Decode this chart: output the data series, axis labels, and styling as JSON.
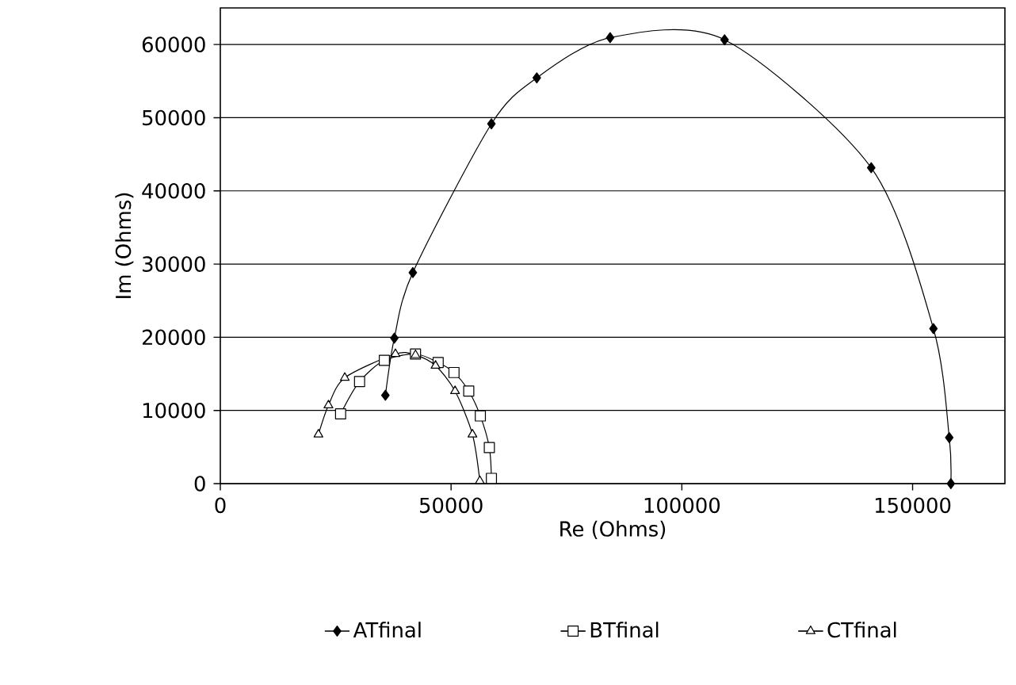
{
  "chart_data": {
    "type": "line",
    "xlabel": "Re (Ohms)",
    "ylabel": "Im (Ohms)",
    "xlim": [
      0,
      170000
    ],
    "xticks": [
      0,
      50000,
      100000,
      150000
    ],
    "ylim": [
      0,
      65000
    ],
    "yticks": [
      0,
      10000,
      20000,
      30000,
      40000,
      50000,
      60000
    ],
    "grid": "y",
    "legend": "bottom",
    "line_style": "solid",
    "series": [
      {
        "name": "ATfinal",
        "color": "#000000",
        "marker": "diamond",
        "x": [
          35770,
          37710,
          41710,
          58740,
          68570,
          84460,
          109260,
          141030,
          154510,
          157940,
          158290
        ],
        "values": [
          12070,
          19880,
          28840,
          49160,
          55450,
          60940,
          60650,
          43160,
          21180,
          6290,
          0
        ]
      },
      {
        "name": "BTfinal",
        "color": "#000000",
        "marker": "square",
        "x": [
          26060,
          30170,
          35540,
          42290,
          47200,
          50630,
          53830,
          56340,
          58290,
          58740
        ],
        "values": [
          9540,
          13950,
          16840,
          17710,
          16550,
          15180,
          12650,
          9250,
          4920,
          720
        ]
      },
      {
        "name": "CTfinal",
        "color": "#000000",
        "marker": "triangle",
        "x": [
          21260,
          23430,
          26970,
          37940,
          42290,
          46630,
          50860,
          54630,
          56230
        ],
        "values": [
          6720,
          10700,
          14460,
          17710,
          17570,
          16120,
          12650,
          6720,
          360
        ]
      }
    ]
  }
}
